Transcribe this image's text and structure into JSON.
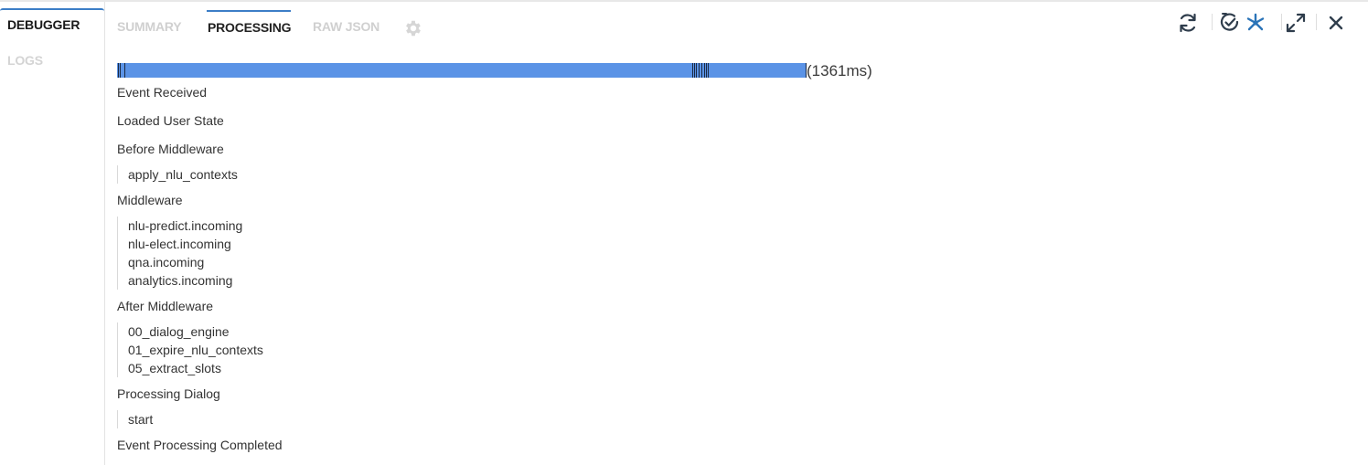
{
  "sidebar": {
    "tabs": [
      {
        "label": "DEBUGGER"
      },
      {
        "label": "LOGS"
      }
    ]
  },
  "tabs": {
    "summary": "SUMMARY",
    "processing": "PROCESSING",
    "raw_json": "RAW JSON"
  },
  "toolbar": {
    "icons": [
      "refresh-icon",
      "clock-check-icon",
      "spark-icon",
      "expand-icon",
      "close-icon"
    ],
    "accent_color": "#2b74b8"
  },
  "timeline": {
    "duration": "(1361ms)",
    "bar_color": "#5b93e6"
  },
  "steps": {
    "event_received": "Event Received",
    "loaded_user_state": "Loaded User State",
    "before_middleware": {
      "label": "Before Middleware",
      "items": [
        "apply_nlu_contexts"
      ]
    },
    "middleware": {
      "label": "Middleware",
      "items": [
        "nlu-predict.incoming",
        "nlu-elect.incoming",
        "qna.incoming",
        "analytics.incoming"
      ]
    },
    "after_middleware": {
      "label": "After Middleware",
      "items": [
        "00_dialog_engine",
        "01_expire_nlu_contexts",
        "05_extract_slots"
      ]
    },
    "processing_dialog": {
      "label": "Processing Dialog",
      "items": [
        "start"
      ]
    },
    "event_processing_completed": "Event Processing Completed"
  }
}
